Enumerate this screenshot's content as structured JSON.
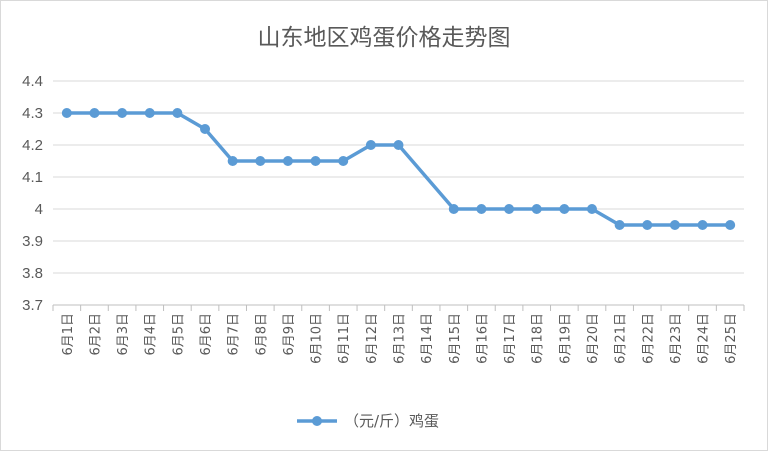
{
  "chart_data": {
    "type": "line",
    "title": "山东地区鸡蛋价格走势图",
    "xlabel": "",
    "ylabel": "",
    "ylim": [
      3.7,
      4.4
    ],
    "yticks": [
      "4.4",
      "4.3",
      "4.2",
      "4.1",
      "4",
      "3.9",
      "3.8",
      "3.7"
    ],
    "grid": true,
    "legend_position": "bottom",
    "categories": [
      "6月1日",
      "6月2日",
      "6月3日",
      "6月4日",
      "6月5日",
      "6月6日",
      "6月7日",
      "6月8日",
      "6月9日",
      "6月10日",
      "6月11日",
      "6月12日",
      "6月13日",
      "6月14日",
      "6月15日",
      "6月16日",
      "6月17日",
      "6月18日",
      "6月19日",
      "6月20日",
      "6月21日",
      "6月22日",
      "6月23日",
      "6月24日",
      "6月25日"
    ],
    "series": [
      {
        "name": "（元/斤）鸡蛋",
        "color": "#5b9bd5",
        "values": [
          4.3,
          4.3,
          4.3,
          4.3,
          4.3,
          4.25,
          4.15,
          4.15,
          4.15,
          4.15,
          4.15,
          4.2,
          4.2,
          null,
          4.0,
          4.0,
          4.0,
          4.0,
          4.0,
          4.0,
          3.95,
          3.95,
          3.95,
          3.95,
          3.95
        ]
      }
    ]
  }
}
